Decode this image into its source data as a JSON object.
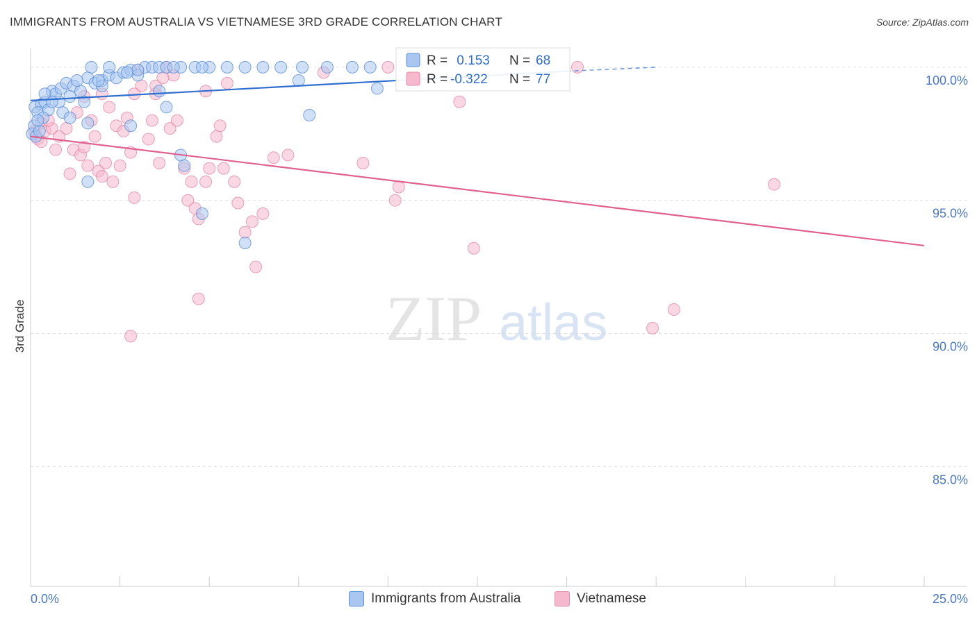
{
  "title": "IMMIGRANTS FROM AUSTRALIA VS VIETNAMESE 3RD GRADE CORRELATION CHART",
  "source": "Source: ZipAtlas.com",
  "watermark": {
    "zip": "ZIP",
    "atlas": "atlas"
  },
  "colors": {
    "blue_fill": "#a8c6f0",
    "blue_stroke": "#5b8fd6",
    "blue_line": "#2f6fd0",
    "pink_fill": "#f5b8cc",
    "pink_stroke": "#e58aa8",
    "pink_line": "#e0608e",
    "axis_text": "#4a78c8",
    "grid": "#dddddd"
  },
  "chart_data": {
    "type": "scatter",
    "title": "IMMIGRANTS FROM AUSTRALIA VS VIETNAMESE 3RD GRADE CORRELATION CHART",
    "ylabel": "3rd Grade",
    "xlabel": "",
    "xlim": [
      0,
      25
    ],
    "ylim": [
      80.5,
      100.7
    ],
    "x_tick_labels": [
      "0.0%",
      "25.0%"
    ],
    "y_ticks": [
      85,
      90,
      95,
      100
    ],
    "y_tick_labels": [
      "85.0%",
      "90.0%",
      "95.0%",
      "100.0%"
    ],
    "legend_stats": [
      {
        "r_label": "R =",
        "r_value": " 0.153",
        "n_label": "N =",
        "n_value": "68"
      },
      {
        "r_label": "R =",
        "r_value": "-0.322",
        "n_label": "N =",
        "n_value": "77"
      }
    ],
    "series": [
      {
        "name": "Immigrants from Australia",
        "color": "blue",
        "trend": {
          "x0": 0,
          "y0": 98.75,
          "x1": 15.0,
          "y1": 99.85,
          "dash_to_x": 17.5,
          "dash_to_y": 100.0
        },
        "points": [
          [
            0.12,
            98.5
          ],
          [
            0.3,
            98.6
          ],
          [
            0.2,
            98.3
          ],
          [
            0.1,
            97.8
          ],
          [
            0.05,
            97.5
          ],
          [
            0.15,
            97.4
          ],
          [
            0.25,
            97.6
          ],
          [
            0.4,
            98.7
          ],
          [
            0.5,
            98.4
          ],
          [
            0.6,
            99.1
          ],
          [
            0.8,
            98.7
          ],
          [
            0.7,
            99.0
          ],
          [
            0.85,
            99.2
          ],
          [
            1.0,
            99.4
          ],
          [
            1.2,
            99.3
          ],
          [
            1.4,
            99.1
          ],
          [
            1.6,
            99.6
          ],
          [
            1.3,
            99.5
          ],
          [
            1.1,
            98.9
          ],
          [
            1.5,
            98.7
          ],
          [
            1.8,
            99.4
          ],
          [
            2.0,
            99.5
          ],
          [
            2.2,
            99.7
          ],
          [
            2.4,
            99.6
          ],
          [
            2.6,
            99.8
          ],
          [
            2.8,
            99.9
          ],
          [
            3.0,
            99.7
          ],
          [
            3.2,
            100.0
          ],
          [
            3.4,
            100.0
          ],
          [
            3.6,
            100.0
          ],
          [
            3.8,
            100.0
          ],
          [
            1.7,
            100.0
          ],
          [
            2.2,
            100.0
          ],
          [
            4.2,
            100.0
          ],
          [
            4.6,
            100.0
          ],
          [
            5.0,
            100.0
          ],
          [
            5.5,
            100.0
          ],
          [
            6.0,
            100.0
          ],
          [
            6.5,
            100.0
          ],
          [
            7.0,
            100.0
          ],
          [
            7.6,
            100.0
          ],
          [
            8.3,
            100.0
          ],
          [
            9.0,
            100.0
          ],
          [
            9.5,
            100.0
          ],
          [
            3.0,
            99.9
          ],
          [
            2.7,
            99.8
          ],
          [
            4.0,
            100.0
          ],
          [
            4.8,
            100.0
          ],
          [
            2.0,
            99.3
          ],
          [
            1.9,
            99.5
          ],
          [
            1.6,
            97.9
          ],
          [
            2.8,
            97.8
          ],
          [
            3.6,
            99.1
          ],
          [
            3.8,
            98.5
          ],
          [
            4.2,
            96.7
          ],
          [
            4.3,
            96.3
          ],
          [
            4.8,
            94.5
          ],
          [
            6.0,
            93.4
          ],
          [
            7.5,
            99.5
          ],
          [
            7.8,
            98.2
          ],
          [
            9.7,
            99.2
          ],
          [
            0.9,
            98.3
          ],
          [
            1.1,
            98.1
          ],
          [
            1.6,
            95.7
          ],
          [
            0.6,
            98.7
          ],
          [
            0.35,
            98.1
          ],
          [
            0.2,
            98.0
          ],
          [
            0.4,
            99.0
          ]
        ]
      },
      {
        "name": "Vietnamese",
        "color": "pink",
        "trend": {
          "x0": 0,
          "y0": 97.4,
          "x1": 25.0,
          "y1": 93.3
        },
        "points": [
          [
            0.1,
            97.6
          ],
          [
            0.2,
            97.3
          ],
          [
            0.3,
            97.9
          ],
          [
            0.4,
            97.6
          ],
          [
            0.6,
            97.7
          ],
          [
            0.7,
            96.9
          ],
          [
            0.8,
            97.4
          ],
          [
            1.0,
            97.7
          ],
          [
            1.1,
            96.0
          ],
          [
            1.2,
            96.9
          ],
          [
            1.3,
            98.3
          ],
          [
            1.4,
            96.7
          ],
          [
            1.5,
            97.0
          ],
          [
            1.6,
            96.3
          ],
          [
            1.7,
            98.0
          ],
          [
            1.8,
            97.4
          ],
          [
            1.9,
            96.1
          ],
          [
            2.0,
            95.9
          ],
          [
            2.1,
            96.4
          ],
          [
            2.2,
            98.5
          ],
          [
            2.3,
            95.7
          ],
          [
            2.4,
            97.8
          ],
          [
            2.5,
            96.3
          ],
          [
            2.6,
            97.6
          ],
          [
            2.7,
            98.1
          ],
          [
            2.8,
            96.8
          ],
          [
            2.9,
            95.1
          ],
          [
            3.0,
            99.9
          ],
          [
            3.1,
            99.3
          ],
          [
            3.3,
            97.3
          ],
          [
            3.4,
            98.0
          ],
          [
            3.5,
            99.0
          ],
          [
            3.6,
            96.4
          ],
          [
            3.8,
            100.0
          ],
          [
            3.9,
            97.7
          ],
          [
            4.0,
            99.7
          ],
          [
            4.1,
            98.0
          ],
          [
            4.3,
            96.2
          ],
          [
            4.4,
            95.0
          ],
          [
            4.5,
            95.7
          ],
          [
            4.6,
            94.7
          ],
          [
            4.7,
            94.3
          ],
          [
            4.9,
            95.7
          ],
          [
            5.0,
            96.2
          ],
          [
            5.2,
            97.4
          ],
          [
            5.3,
            97.8
          ],
          [
            5.4,
            96.2
          ],
          [
            5.5,
            99.4
          ],
          [
            5.7,
            95.7
          ],
          [
            5.8,
            94.9
          ],
          [
            6.0,
            93.8
          ],
          [
            6.2,
            94.2
          ],
          [
            6.3,
            92.5
          ],
          [
            6.5,
            94.5
          ],
          [
            6.8,
            96.6
          ],
          [
            7.2,
            96.7
          ],
          [
            8.2,
            99.8
          ],
          [
            9.3,
            96.4
          ],
          [
            10.0,
            100.0
          ],
          [
            10.2,
            95.0
          ],
          [
            10.3,
            95.5
          ],
          [
            12.0,
            98.7
          ],
          [
            12.4,
            93.2
          ],
          [
            15.3,
            100.0
          ],
          [
            20.8,
            95.6
          ],
          [
            17.4,
            90.2
          ],
          [
            18.0,
            90.9
          ],
          [
            4.7,
            91.3
          ],
          [
            2.8,
            89.9
          ],
          [
            3.5,
            99.3
          ],
          [
            2.0,
            99.0
          ],
          [
            1.5,
            98.9
          ],
          [
            0.5,
            98.0
          ],
          [
            0.3,
            97.2
          ],
          [
            2.9,
            99.0
          ],
          [
            3.7,
            99.6
          ],
          [
            4.9,
            99.1
          ]
        ]
      }
    ]
  }
}
